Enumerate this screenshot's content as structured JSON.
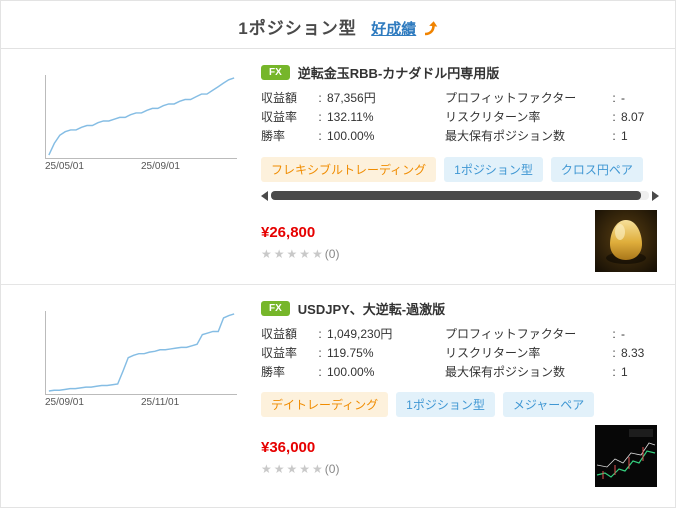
{
  "meta": {
    "colon": ":"
  },
  "colors": {
    "chart_line": "#85bde4",
    "price": "#e60000",
    "badge_bg": "#76b62a",
    "tag_orange": "#f08c00",
    "tag_blue": "#3f97d3",
    "link": "#2f7bbf",
    "arrow": "#f08300"
  },
  "header": {
    "title": "1ポジション型",
    "link_label": "好成績",
    "arrow_icon": "curved-up-arrow"
  },
  "products": [
    {
      "badge": "FX",
      "title": "逆転金玉RBB-カナダドル円専用版",
      "chart": {
        "type": "line",
        "x_labels": [
          "25/05/01",
          "25/09/01"
        ],
        "values": [
          2,
          15,
          24,
          28,
          30,
          30,
          33,
          35,
          35,
          38,
          40,
          40,
          42,
          44,
          44,
          47,
          49,
          49,
          52,
          54,
          54,
          57,
          59,
          59,
          62,
          64,
          64,
          67,
          70,
          70,
          74,
          78,
          82,
          86,
          88
        ]
      },
      "stats": [
        {
          "label": "収益額",
          "value": "87,356円"
        },
        {
          "label": "収益率",
          "value": "132.11%"
        },
        {
          "label": "勝率",
          "value": "100.00%"
        }
      ],
      "stats_right": [
        {
          "label": "プロフィットファクター",
          "value": "-"
        },
        {
          "label": "リスクリターン率",
          "value": "8.07"
        },
        {
          "label": "最大保有ポジション数",
          "value": "1"
        }
      ],
      "tags": [
        {
          "label": "フレキシブルトレーディング",
          "type": "orange"
        },
        {
          "label": "1ポジション型",
          "type": "blue"
        },
        {
          "label": "クロス円ペア",
          "type": "blue"
        }
      ],
      "price": "¥26,800",
      "rating": {
        "stars": "★★★★★",
        "count": "(0)"
      }
    },
    {
      "badge": "FX",
      "title": "USDJPY、大逆転-過激版",
      "chart": {
        "type": "line",
        "x_labels": [
          "25/09/01",
          "25/11/01"
        ],
        "values": [
          3,
          4,
          4,
          5,
          6,
          6,
          7,
          8,
          8,
          9,
          10,
          10,
          11,
          12,
          28,
          45,
          48,
          50,
          50,
          52,
          53,
          55,
          55,
          56,
          57,
          58,
          58,
          60,
          62,
          74,
          76,
          78,
          78,
          95,
          98,
          100
        ]
      },
      "stats": [
        {
          "label": "収益額",
          "value": "1,049,230円"
        },
        {
          "label": "収益率",
          "value": "119.75%"
        },
        {
          "label": "勝率",
          "value": "100.00%"
        }
      ],
      "stats_right": [
        {
          "label": "プロフィットファクター",
          "value": "-"
        },
        {
          "label": "リスクリターン率",
          "value": "8.33"
        },
        {
          "label": "最大保有ポジション数",
          "value": "1"
        }
      ],
      "tags": [
        {
          "label": "デイトレーディング",
          "type": "orange"
        },
        {
          "label": "1ポジション型",
          "type": "blue"
        },
        {
          "label": "メジャーペア",
          "type": "blue"
        }
      ],
      "price": "¥36,000",
      "rating": {
        "stars": "★★★★★",
        "count": "(0)"
      }
    }
  ]
}
